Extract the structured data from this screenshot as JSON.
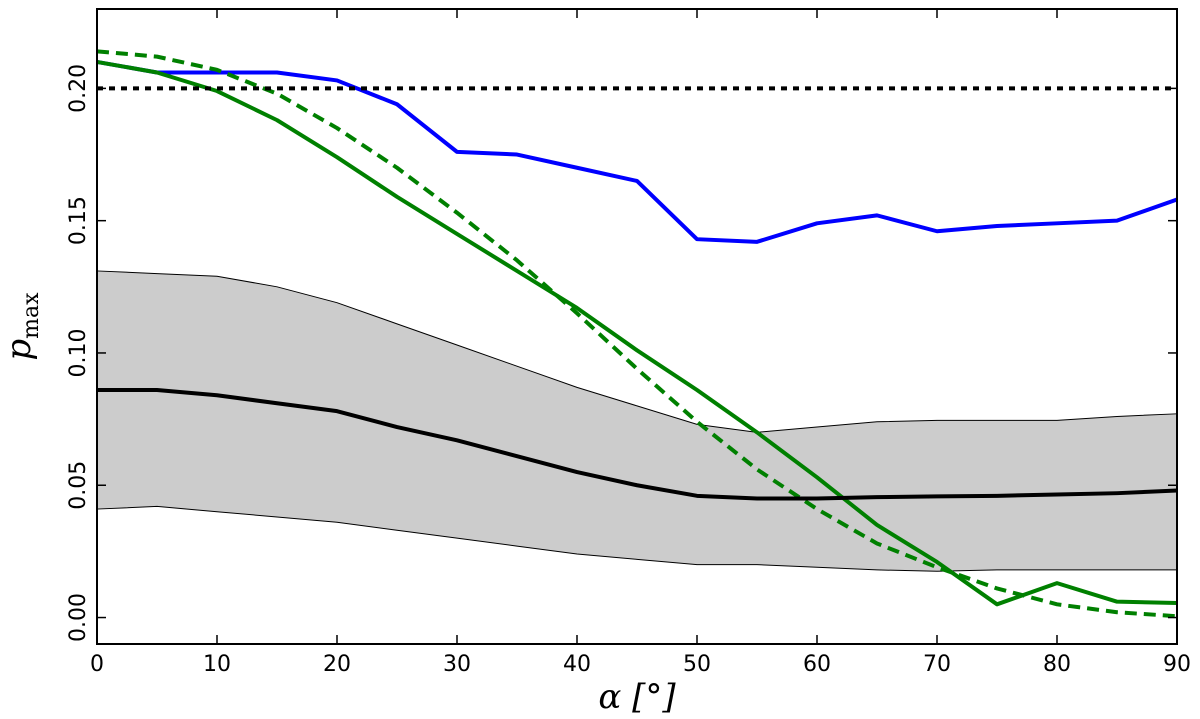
{
  "chart_data": {
    "type": "line",
    "title": "",
    "xlabel": "α [°]",
    "ylabel_main": "p",
    "ylabel_sub": "max",
    "xlim": [
      0,
      90
    ],
    "ylim": [
      -0.01,
      0.23
    ],
    "x_ticks": [
      0,
      10,
      20,
      30,
      40,
      50,
      60,
      70,
      80,
      90
    ],
    "x_tick_labels": [
      "0",
      "10",
      "20",
      "30",
      "40",
      "50",
      "60",
      "70",
      "80",
      "90"
    ],
    "y_ticks": [
      0.0,
      0.05,
      0.1,
      0.15,
      0.2
    ],
    "y_tick_labels": [
      "0.00",
      "0.05",
      "0.10",
      "0.15",
      "0.20"
    ],
    "grid": false,
    "x": [
      0,
      5,
      10,
      15,
      20,
      25,
      30,
      35,
      40,
      45,
      50,
      55,
      60,
      65,
      70,
      75,
      80,
      85,
      90
    ],
    "band": {
      "color": "#cccccc",
      "upper": [
        0.131,
        0.13,
        0.129,
        0.125,
        0.119,
        0.111,
        0.103,
        0.095,
        0.087,
        0.08,
        0.073,
        0.07,
        0.072,
        0.074,
        0.0745,
        0.0745,
        0.0745,
        0.076,
        0.077
      ],
      "lower": [
        0.041,
        0.042,
        0.04,
        0.038,
        0.036,
        0.033,
        0.03,
        0.027,
        0.024,
        0.022,
        0.02,
        0.02,
        0.019,
        0.018,
        0.0175,
        0.018,
        0.018,
        0.018,
        0.018
      ]
    },
    "series": [
      {
        "color": "#0000ff",
        "dash": "solid",
        "width": 4,
        "values": [
          0.21,
          0.206,
          0.206,
          0.206,
          0.203,
          0.194,
          0.176,
          0.175,
          0.17,
          0.165,
          0.143,
          0.142,
          0.149,
          0.152,
          0.146,
          0.148,
          0.149,
          0.15,
          0.158
        ]
      },
      {
        "color": "#008000",
        "dash": "solid",
        "width": 4,
        "values": [
          0.21,
          0.206,
          0.199,
          0.188,
          0.174,
          0.159,
          0.145,
          0.131,
          0.117,
          0.101,
          0.086,
          0.07,
          0.053,
          0.035,
          0.021,
          0.005,
          0.013,
          0.006,
          0.0055
        ]
      },
      {
        "color": "#008000",
        "dash": "dashed",
        "width": 4,
        "values": [
          0.214,
          0.212,
          0.207,
          0.198,
          0.185,
          0.17,
          0.153,
          0.135,
          0.115,
          0.094,
          0.074,
          0.056,
          0.041,
          0.028,
          0.019,
          0.011,
          0.005,
          0.002,
          0.0005
        ]
      },
      {
        "color": "#000000",
        "dash": "solid",
        "width": 4,
        "values": [
          0.086,
          0.086,
          0.084,
          0.081,
          0.078,
          0.072,
          0.067,
          0.061,
          0.055,
          0.05,
          0.046,
          0.045,
          0.045,
          0.0455,
          0.0458,
          0.046,
          0.0465,
          0.047,
          0.048
        ]
      }
    ],
    "hlines": [
      {
        "y": 0.2,
        "color": "#000000",
        "dash": "dotted",
        "width": 4
      }
    ]
  }
}
